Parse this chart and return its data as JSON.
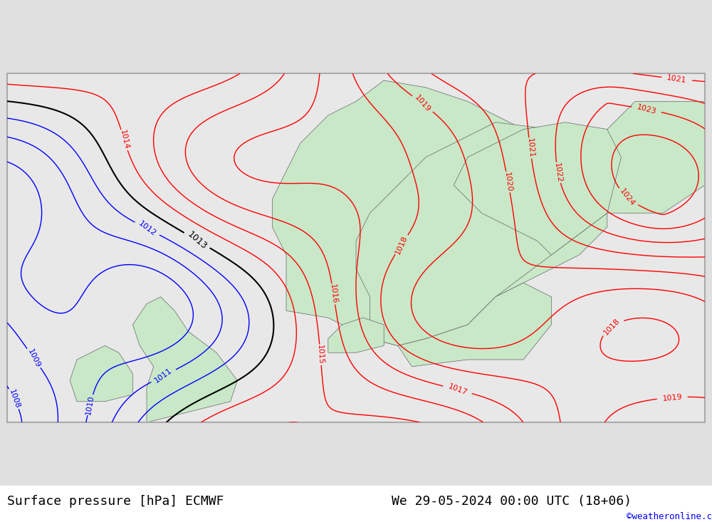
{
  "title_left": "Surface pressure [hPa] ECMWF",
  "title_right": "We 29-05-2024 00:00 UTC (18+06)",
  "watermark": "©weatheronline.co.uk",
  "bg_color": "#e8e8e8",
  "land_color_low": "#c8e8c8",
  "land_color_high": "#b8ddb8",
  "isobar_interval": 1,
  "pressure_min": 1004,
  "pressure_max": 1026,
  "blue_contour_min": 1004,
  "blue_contour_max": 1012,
  "black_contour_val": 1013,
  "red_contour_min": 1014,
  "red_contour_max": 1026,
  "font_size_labels": 11,
  "font_size_title": 13
}
